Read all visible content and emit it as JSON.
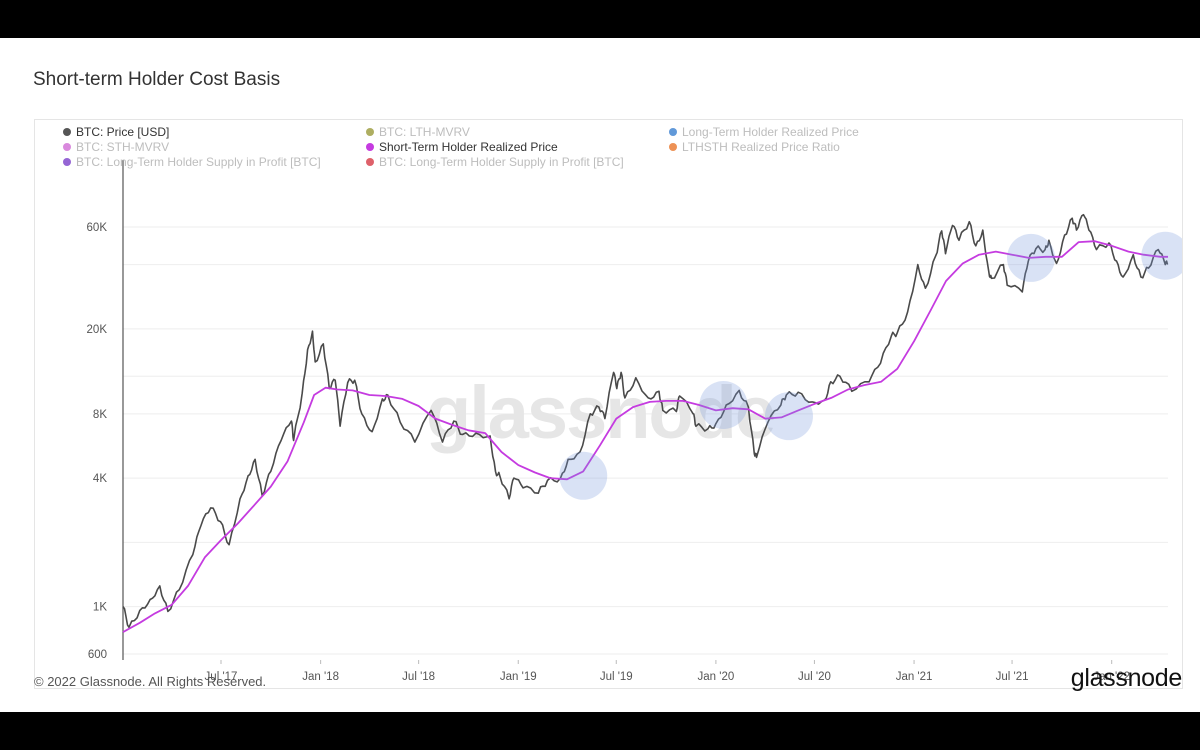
{
  "title": "Short-term Holder Cost Basis",
  "footer": {
    "copyright": "© 2022 Glassnode. All Rights Reserved.",
    "logo": "glassnode"
  },
  "watermark": "glassnode",
  "legend": [
    {
      "label": "BTC: Price [USD]",
      "color": "#555555",
      "active": true
    },
    {
      "label": "BTC: LTH-MVRV",
      "color": "#9a9a3a",
      "active": false
    },
    {
      "label": "Long-Term Holder Realized Price",
      "color": "#3a7fd0",
      "active": false
    },
    {
      "label": "BTC: STH-MVRV",
      "color": "#cf6bd4",
      "active": false
    },
    {
      "label": "Short-Term Holder Realized Price",
      "color": "#c53be0",
      "active": true
    },
    {
      "label": "LTHSTH Realized Price Ratio",
      "color": "#e8762b",
      "active": false
    },
    {
      "label": "BTC: Long-Term Holder Supply in Profit [BTC]",
      "color": "#7b3fc9",
      "active": false
    },
    {
      "label": "BTC: Long-Term Holder Supply in Profit [BTC]",
      "color": "#d63a45",
      "active": false
    }
  ],
  "chart_data": {
    "type": "line",
    "title": "Short-term Holder Cost Basis",
    "y_scale": "log",
    "ylim": [
      600,
      90000
    ],
    "y_ticks": [
      {
        "value": 600,
        "label": "600"
      },
      {
        "value": 1000,
        "label": "1K"
      },
      {
        "value": 4000,
        "label": "4K"
      },
      {
        "value": 8000,
        "label": "8K"
      },
      {
        "value": 20000,
        "label": "20K"
      },
      {
        "value": 60000,
        "label": "60K"
      }
    ],
    "xlim": [
      "2017-01-01",
      "2022-04-15"
    ],
    "x_ticks": [
      {
        "date": "2017-07-01",
        "label": "Jul '17"
      },
      {
        "date": "2018-01-01",
        "label": "Jan '18"
      },
      {
        "date": "2018-07-01",
        "label": "Jul '18"
      },
      {
        "date": "2019-01-01",
        "label": "Jan '19"
      },
      {
        "date": "2019-07-01",
        "label": "Jul '19"
      },
      {
        "date": "2020-01-01",
        "label": "Jan '20"
      },
      {
        "date": "2020-07-01",
        "label": "Jul '20"
      },
      {
        "date": "2021-01-01",
        "label": "Jan '21"
      },
      {
        "date": "2021-07-01",
        "label": "Jul '21"
      },
      {
        "date": "2022-01-01",
        "label": "Jan '22"
      }
    ],
    "grid": true,
    "series": [
      {
        "name": "BTC: Price [USD]",
        "color": "#4a4a4a",
        "points": [
          [
            "2017-01-01",
            1000
          ],
          [
            "2017-01-12",
            800
          ],
          [
            "2017-02-01",
            960
          ],
          [
            "2017-02-20",
            1080
          ],
          [
            "2017-03-10",
            1250
          ],
          [
            "2017-03-25",
            950
          ],
          [
            "2017-04-15",
            1200
          ],
          [
            "2017-05-10",
            1750
          ],
          [
            "2017-05-25",
            2400
          ],
          [
            "2017-06-12",
            2900
          ],
          [
            "2017-06-30",
            2500
          ],
          [
            "2017-07-16",
            1950
          ],
          [
            "2017-08-05",
            3200
          ],
          [
            "2017-08-20",
            4100
          ],
          [
            "2017-09-02",
            4900
          ],
          [
            "2017-09-15",
            3300
          ],
          [
            "2017-10-01",
            4300
          ],
          [
            "2017-10-20",
            6000
          ],
          [
            "2017-11-08",
            7400
          ],
          [
            "2017-11-12",
            6000
          ],
          [
            "2017-11-28",
            10000
          ],
          [
            "2017-12-08",
            16000
          ],
          [
            "2017-12-17",
            19500
          ],
          [
            "2017-12-22",
            14000
          ],
          [
            "2018-01-06",
            17000
          ],
          [
            "2018-01-17",
            10500
          ],
          [
            "2018-01-28",
            11500
          ],
          [
            "2018-02-06",
            7000
          ],
          [
            "2018-02-20",
            11200
          ],
          [
            "2018-03-05",
            11500
          ],
          [
            "2018-03-18",
            8000
          ],
          [
            "2018-04-06",
            6600
          ],
          [
            "2018-04-25",
            9400
          ],
          [
            "2018-05-05",
            9800
          ],
          [
            "2018-05-28",
            7300
          ],
          [
            "2018-06-24",
            5900
          ],
          [
            "2018-07-24",
            8300
          ],
          [
            "2018-08-14",
            5900
          ],
          [
            "2018-09-04",
            7400
          ],
          [
            "2018-09-20",
            6400
          ],
          [
            "2018-10-15",
            6500
          ],
          [
            "2018-11-10",
            6300
          ],
          [
            "2018-11-20",
            4300
          ],
          [
            "2018-11-28",
            4100
          ],
          [
            "2018-12-15",
            3200
          ],
          [
            "2018-12-24",
            4000
          ],
          [
            "2019-01-10",
            3600
          ],
          [
            "2019-02-07",
            3400
          ],
          [
            "2019-02-24",
            3900
          ],
          [
            "2019-03-20",
            4000
          ],
          [
            "2019-04-03",
            4900
          ],
          [
            "2019-04-25",
            5300
          ],
          [
            "2019-05-14",
            8000
          ],
          [
            "2019-05-30",
            8600
          ],
          [
            "2019-06-10",
            7600
          ],
          [
            "2019-06-26",
            12500
          ],
          [
            "2019-07-02",
            10500
          ],
          [
            "2019-07-10",
            12500
          ],
          [
            "2019-07-17",
            9500
          ],
          [
            "2019-08-06",
            11800
          ],
          [
            "2019-08-29",
            9500
          ],
          [
            "2019-09-18",
            10200
          ],
          [
            "2019-09-25",
            8300
          ],
          [
            "2019-10-20",
            8200
          ],
          [
            "2019-10-26",
            9700
          ],
          [
            "2019-11-20",
            8000
          ],
          [
            "2019-11-25",
            7000
          ],
          [
            "2019-12-17",
            6800
          ],
          [
            "2020-01-01",
            7200
          ],
          [
            "2020-01-20",
            8800
          ],
          [
            "2020-02-13",
            10300
          ],
          [
            "2020-03-01",
            8600
          ],
          [
            "2020-03-12",
            5200
          ],
          [
            "2020-03-16",
            5000
          ],
          [
            "2020-04-06",
            7300
          ],
          [
            "2020-04-30",
            8800
          ],
          [
            "2020-05-10",
            9800
          ],
          [
            "2020-06-01",
            10100
          ],
          [
            "2020-06-27",
            9100
          ],
          [
            "2020-07-20",
            9300
          ],
          [
            "2020-07-31",
            11300
          ],
          [
            "2020-08-17",
            12000
          ],
          [
            "2020-09-08",
            10200
          ],
          [
            "2020-10-10",
            11300
          ],
          [
            "2020-10-31",
            13800
          ],
          [
            "2020-11-20",
            18500
          ],
          [
            "2020-12-01",
            19200
          ],
          [
            "2020-12-20",
            24000
          ],
          [
            "2021-01-08",
            40000
          ],
          [
            "2021-01-22",
            31000
          ],
          [
            "2021-02-10",
            44000
          ],
          [
            "2021-02-21",
            57500
          ],
          [
            "2021-02-28",
            45000
          ],
          [
            "2021-03-13",
            61000
          ],
          [
            "2021-03-25",
            52000
          ],
          [
            "2021-04-13",
            63500
          ],
          [
            "2021-04-25",
            49000
          ],
          [
            "2021-05-08",
            58000
          ],
          [
            "2021-05-19",
            37000
          ],
          [
            "2021-05-24",
            34500
          ],
          [
            "2021-06-15",
            40000
          ],
          [
            "2021-06-22",
            32000
          ],
          [
            "2021-07-20",
            29800
          ],
          [
            "2021-07-31",
            41500
          ],
          [
            "2021-08-14",
            47500
          ],
          [
            "2021-08-31",
            47000
          ],
          [
            "2021-09-07",
            52000
          ],
          [
            "2021-09-21",
            40500
          ],
          [
            "2021-10-06",
            55000
          ],
          [
            "2021-10-20",
            66000
          ],
          [
            "2021-10-28",
            58000
          ],
          [
            "2021-11-10",
            68500
          ],
          [
            "2021-11-20",
            58000
          ],
          [
            "2021-12-04",
            47000
          ],
          [
            "2021-12-27",
            50500
          ],
          [
            "2022-01-10",
            41500
          ],
          [
            "2022-01-22",
            35000
          ],
          [
            "2022-02-10",
            44500
          ],
          [
            "2022-02-24",
            35000
          ],
          [
            "2022-03-10",
            38500
          ],
          [
            "2022-03-28",
            47000
          ],
          [
            "2022-04-10",
            40000
          ],
          [
            "2022-04-15",
            40500
          ]
        ]
      },
      {
        "name": "Short-Term Holder Realized Price",
        "color": "#c53be0",
        "points": [
          [
            "2017-01-01",
            760
          ],
          [
            "2017-02-01",
            840
          ],
          [
            "2017-03-01",
            930
          ],
          [
            "2017-04-01",
            1020
          ],
          [
            "2017-05-01",
            1250
          ],
          [
            "2017-06-01",
            1700
          ],
          [
            "2017-07-01",
            2050
          ],
          [
            "2017-08-01",
            2450
          ],
          [
            "2017-09-01",
            3000
          ],
          [
            "2017-10-01",
            3650
          ],
          [
            "2017-11-01",
            4800
          ],
          [
            "2017-12-01",
            7300
          ],
          [
            "2017-12-20",
            9800
          ],
          [
            "2018-01-10",
            10600
          ],
          [
            "2018-02-01",
            10400
          ],
          [
            "2018-03-01",
            10300
          ],
          [
            "2018-04-01",
            9800
          ],
          [
            "2018-05-01",
            9700
          ],
          [
            "2018-06-01",
            9400
          ],
          [
            "2018-07-01",
            8700
          ],
          [
            "2018-08-01",
            7600
          ],
          [
            "2018-09-01",
            7100
          ],
          [
            "2018-10-01",
            6700
          ],
          [
            "2018-11-01",
            6500
          ],
          [
            "2018-12-01",
            5300
          ],
          [
            "2019-01-01",
            4600
          ],
          [
            "2019-02-01",
            4250
          ],
          [
            "2019-03-01",
            4000
          ],
          [
            "2019-04-01",
            3950
          ],
          [
            "2019-05-01",
            4300
          ],
          [
            "2019-06-01",
            5700
          ],
          [
            "2019-07-01",
            7600
          ],
          [
            "2019-08-01",
            8600
          ],
          [
            "2019-09-01",
            9100
          ],
          [
            "2019-10-01",
            9200
          ],
          [
            "2019-11-01",
            9200
          ],
          [
            "2019-12-01",
            8800
          ],
          [
            "2020-01-01",
            8300
          ],
          [
            "2020-02-01",
            8500
          ],
          [
            "2020-03-01",
            8400
          ],
          [
            "2020-04-01",
            7600
          ],
          [
            "2020-05-01",
            7700
          ],
          [
            "2020-06-01",
            8300
          ],
          [
            "2020-07-01",
            8900
          ],
          [
            "2020-08-01",
            9500
          ],
          [
            "2020-09-01",
            10400
          ],
          [
            "2020-10-01",
            10900
          ],
          [
            "2020-11-01",
            11300
          ],
          [
            "2020-12-01",
            13000
          ],
          [
            "2021-01-01",
            17500
          ],
          [
            "2021-02-01",
            24500
          ],
          [
            "2021-03-01",
            33500
          ],
          [
            "2021-04-01",
            40500
          ],
          [
            "2021-05-01",
            44500
          ],
          [
            "2021-06-01",
            46000
          ],
          [
            "2021-07-01",
            44500
          ],
          [
            "2021-08-01",
            43000
          ],
          [
            "2021-09-01",
            43500
          ],
          [
            "2021-10-01",
            43500
          ],
          [
            "2021-11-01",
            51000
          ],
          [
            "2021-12-01",
            51500
          ],
          [
            "2022-01-01",
            49000
          ],
          [
            "2022-02-01",
            46000
          ],
          [
            "2022-03-01",
            44500
          ],
          [
            "2022-04-01",
            43500
          ],
          [
            "2022-04-15",
            43500
          ]
        ]
      }
    ],
    "highlights": [
      {
        "date": "2019-05-01",
        "value": 4100
      },
      {
        "date": "2020-01-15",
        "value": 8800
      },
      {
        "date": "2020-05-15",
        "value": 7800
      },
      {
        "date": "2021-08-05",
        "value": 43000
      },
      {
        "date": "2022-04-10",
        "value": 44000
      }
    ]
  }
}
